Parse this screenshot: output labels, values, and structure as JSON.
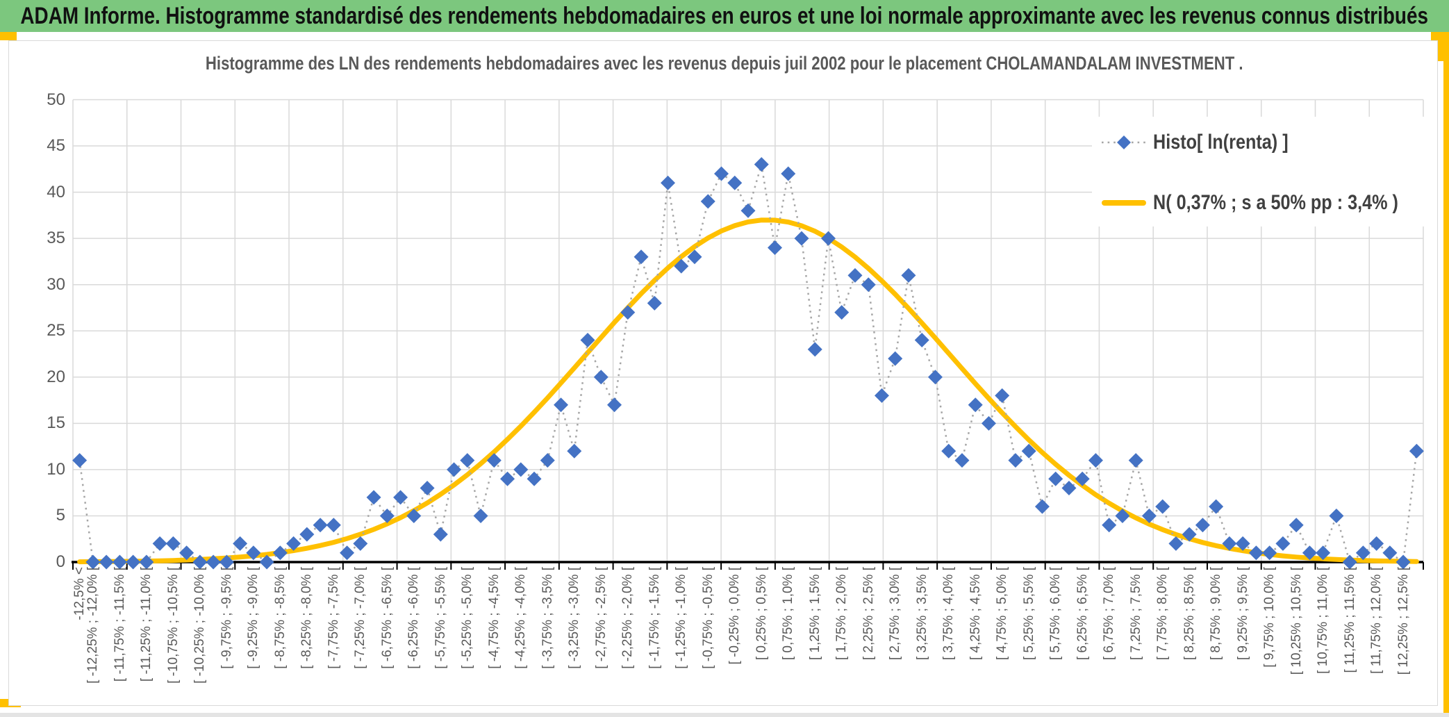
{
  "banner": {
    "text": "ADAM Informe. Histogramme standardisé des rendements hebdomadaires en euros et une loi normale approximante avec les revenus connus distribués"
  },
  "chart": {
    "title": "Histogramme des LN des rendements hebdomadaires avec les revenus depuis juil 2002 pour le placement CHOLAMANDALAM  INVESTMENT ."
  },
  "chart_data": {
    "type": "line",
    "title": "Histogramme des LN des rendements hebdomadaires avec les revenus depuis juil 2002 pour le placement CHOLAMANDALAM  INVESTMENT .",
    "ylim": [
      0,
      50
    ],
    "ytick_step": 5,
    "yticks": [
      0,
      5,
      10,
      15,
      20,
      25,
      30,
      35,
      40,
      45,
      50
    ],
    "grid": true,
    "legend_position": "top-right",
    "bin_width_pct": 0.25,
    "x_range_pct": [
      -12.5,
      12.5
    ],
    "x_axis_labels": [
      "-12,5% <",
      "[ -12,25% ; -12,0% [",
      "[ -11,75% ; -11,5% [",
      "[ -11,25% ; -11,0% [",
      "[ -10,75% ; -10,5% [",
      "[ -10,25% ; -10,0% [",
      "[ -9,75% ; -9,5% [",
      "[ -9,25% ; -9,0% [",
      "[ -8,75% ; -8,5% [",
      "[ -8,25% ; -8,0% [",
      "[ -7,75% ; -7,5% [",
      "[ -7,25% ; -7,0% [",
      "[ -6,75% ; -6,5% [",
      "[ -6,25% ; -6,0% [",
      "[ -5,75% ; -5,5% [",
      "[ -5,25% ; -5,0% [",
      "[ -4,75% ; -4,5% [",
      "[ -4,25% ; -4,0% [",
      "[ -3,75% ; -3,5% [",
      "[ -3,25% ; -3,0% [",
      "[ -2,75% ; -2,5% [",
      "[ -2,25% ; -2,0% [",
      "[ -1,75% ; -1,5% [",
      "[ -1,25% ; -1,0% [",
      "[ -0,75% ; -0,5% [",
      "[ -0,25% ; 0,0% [",
      "[ 0,25% ; 0,5% [",
      "[ 0,75% ; 1,0% [",
      "[ 1,25% ; 1,5% [",
      "[ 1,75% ; 2,0% [",
      "[ 2,25% ; 2,5% [",
      "[ 2,75% ; 3,0% [",
      "[ 3,25% ; 3,5% [",
      "[ 3,75% ; 4,0% [",
      "[ 4,25% ; 4,5% [",
      "[ 4,75% ; 5,0% [",
      "[ 5,25% ; 5,5% [",
      "[ 5,75% ; 6,0% [",
      "[ 6,25% ; 6,5% [",
      "[ 6,75% ; 7,0% [",
      "[ 7,25% ; 7,5% [",
      "[ 7,75% ; 8,0% [",
      "[ 8,25% ; 8,5% [",
      "[ 8,75% ; 9,0% [",
      "[ 9,25% ; 9,5% [",
      "[ 9,75% ; 10,0% [",
      "[ 10,25% ; 10,5% [",
      "[ 10,75% ; 11,0% [",
      "[ 11,25% ; 11,5% [",
      "[ 11,75% ; 12,0% [",
      "[ 12,25% ; 12,5% ["
    ],
    "series": [
      {
        "name": "Histo[ ln(renta) ]",
        "type": "scatter-dotted",
        "marker": "diamond",
        "color": "#4472C4",
        "line_color": "#A6A6A6",
        "values": [
          11,
          0,
          0,
          0,
          0,
          0,
          2,
          2,
          1,
          0,
          0,
          0,
          2,
          1,
          0,
          1,
          2,
          3,
          4,
          4,
          1,
          2,
          7,
          5,
          7,
          5,
          8,
          3,
          10,
          11,
          5,
          11,
          9,
          10,
          9,
          11,
          17,
          12,
          24,
          20,
          17,
          27,
          33,
          28,
          41,
          32,
          33,
          39,
          42,
          41,
          38,
          43,
          34,
          42,
          35,
          23,
          35,
          27,
          31,
          30,
          18,
          22,
          31,
          24,
          20,
          12,
          11,
          17,
          15,
          18,
          11,
          12,
          6,
          9,
          8,
          9,
          11,
          4,
          5,
          11,
          5,
          6,
          2,
          3,
          4,
          6,
          2,
          2,
          1,
          1,
          2,
          4,
          1,
          1,
          5,
          0,
          1,
          2,
          1,
          0,
          12
        ]
      },
      {
        "name": "N( 0,37% ; s a 50% pp : 3,4% )",
        "type": "curve",
        "color": "#FFC000",
        "normal": {
          "mean_pct": 0.37,
          "sigma_pct": 3.4,
          "peak": 37
        }
      }
    ]
  },
  "colors": {
    "banner_green": "#7CC77E",
    "accent_gold": "#FFC000",
    "diamond_blue": "#4472C4",
    "dotted_gray": "#A6A6A6",
    "grid_gray": "#D9D9D9",
    "text_gray": "#595959",
    "legend_text": "#404040"
  }
}
